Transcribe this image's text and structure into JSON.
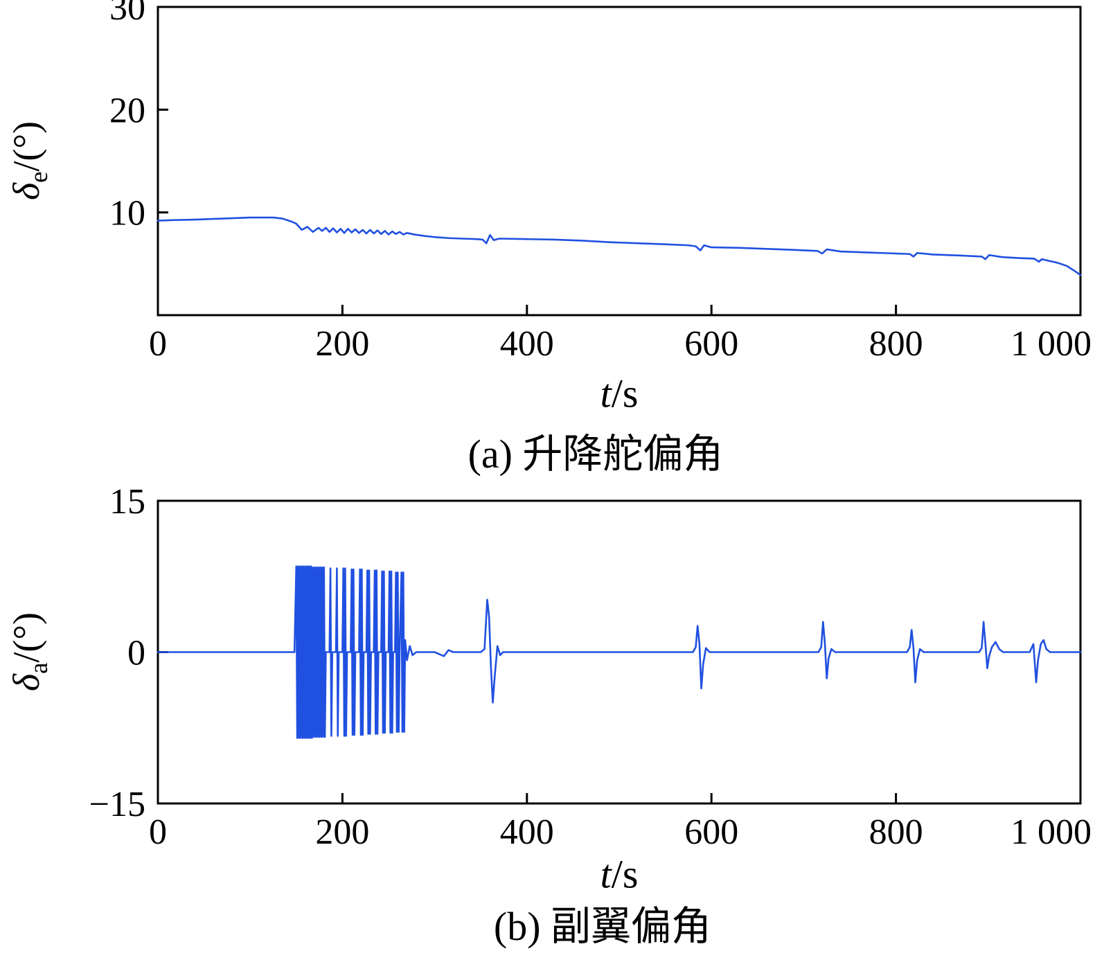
{
  "figure": {
    "background": "#ffffff",
    "axis_color": "#000000",
    "line_color": "#2050e0"
  },
  "chart_data": [
    {
      "type": "line",
      "title": "(a) 升降舵偏角",
      "xlabel": "t/s",
      "ylabel": "δe/(°)",
      "ylabel_parts": {
        "symbol": "δ",
        "sub": "e",
        "unit": "/(°)"
      },
      "xlabel_parts": {
        "symbol": "t",
        "unit": "/s"
      },
      "xlim": [
        0,
        1000
      ],
      "ylim": [
        0,
        30
      ],
      "xticks": [
        0,
        200,
        400,
        600,
        800,
        1000
      ],
      "xtick_labels": [
        "0",
        "200",
        "400",
        "600",
        "800",
        "1 000"
      ],
      "yticks": [
        10,
        20,
        30
      ],
      "ytick_labels": [
        "10",
        "20",
        "30"
      ],
      "grid": false,
      "legend": null,
      "series": [
        {
          "name": "elevator-deflection",
          "color": "#2050e0",
          "points": [
            [
              0,
              9.2
            ],
            [
              15,
              9.25
            ],
            [
              40,
              9.3
            ],
            [
              70,
              9.4
            ],
            [
              100,
              9.5
            ],
            [
              125,
              9.5
            ],
            [
              135,
              9.4
            ],
            [
              145,
              9.1
            ],
            [
              150,
              8.9
            ],
            [
              156,
              8.3
            ],
            [
              162,
              8.6
            ],
            [
              168,
              8.1
            ],
            [
              174,
              8.5
            ],
            [
              178,
              8.2
            ],
            [
              182,
              8.5
            ],
            [
              186,
              8.1
            ],
            [
              190,
              8.45
            ],
            [
              194,
              8.05
            ],
            [
              198,
              8.4
            ],
            [
              202,
              8.0
            ],
            [
              206,
              8.4
            ],
            [
              210,
              8.05
            ],
            [
              214,
              8.35
            ],
            [
              218,
              8.0
            ],
            [
              222,
              8.3
            ],
            [
              226,
              7.95
            ],
            [
              230,
              8.3
            ],
            [
              234,
              7.95
            ],
            [
              238,
              8.25
            ],
            [
              242,
              7.9
            ],
            [
              246,
              8.2
            ],
            [
              250,
              7.85
            ],
            [
              254,
              8.15
            ],
            [
              258,
              7.9
            ],
            [
              262,
              8.1
            ],
            [
              266,
              7.85
            ],
            [
              270,
              8.0
            ],
            [
              278,
              7.85
            ],
            [
              290,
              7.7
            ],
            [
              300,
              7.6
            ],
            [
              315,
              7.5
            ],
            [
              330,
              7.45
            ],
            [
              345,
              7.4
            ],
            [
              352,
              7.35
            ],
            [
              356,
              7.0
            ],
            [
              360,
              7.8
            ],
            [
              364,
              7.3
            ],
            [
              370,
              7.45
            ],
            [
              400,
              7.4
            ],
            [
              430,
              7.35
            ],
            [
              460,
              7.25
            ],
            [
              490,
              7.1
            ],
            [
              520,
              7.0
            ],
            [
              550,
              6.9
            ],
            [
              575,
              6.8
            ],
            [
              583,
              6.7
            ],
            [
              588,
              6.3
            ],
            [
              592,
              6.8
            ],
            [
              600,
              6.6
            ],
            [
              630,
              6.55
            ],
            [
              660,
              6.45
            ],
            [
              690,
              6.35
            ],
            [
              715,
              6.25
            ],
            [
              720,
              6.0
            ],
            [
              725,
              6.4
            ],
            [
              740,
              6.2
            ],
            [
              770,
              6.1
            ],
            [
              800,
              6.0
            ],
            [
              815,
              5.95
            ],
            [
              819,
              5.7
            ],
            [
              823,
              6.05
            ],
            [
              840,
              5.9
            ],
            [
              870,
              5.8
            ],
            [
              893,
              5.7
            ],
            [
              897,
              5.45
            ],
            [
              901,
              5.85
            ],
            [
              915,
              5.65
            ],
            [
              935,
              5.55
            ],
            [
              950,
              5.5
            ],
            [
              955,
              5.2
            ],
            [
              958,
              5.45
            ],
            [
              965,
              5.3
            ],
            [
              975,
              5.1
            ],
            [
              985,
              4.8
            ],
            [
              992,
              4.4
            ],
            [
              997,
              4.1
            ],
            [
              1000,
              3.9
            ]
          ]
        }
      ]
    },
    {
      "type": "line",
      "title": "(b) 副翼偏角",
      "xlabel": "t/s",
      "ylabel": "δa/(°)",
      "ylabel_parts": {
        "symbol": "δ",
        "sub": "a",
        "unit": "/(°)"
      },
      "xlabel_parts": {
        "symbol": "t",
        "unit": "/s"
      },
      "xlim": [
        0,
        1000
      ],
      "ylim": [
        -15,
        15
      ],
      "xticks": [
        0,
        200,
        400,
        600,
        800,
        1000
      ],
      "xtick_labels": [
        "0",
        "200",
        "400",
        "600",
        "800",
        "1 000"
      ],
      "yticks": [
        -15,
        0,
        15
      ],
      "ytick_labels": [
        "−15",
        "0",
        "15"
      ],
      "grid": false,
      "legend": null,
      "series": [
        {
          "name": "aileron-deflection",
          "color": "#2050e0",
          "points": [
            [
              0,
              0
            ],
            [
              140,
              0
            ],
            [
              148,
              0
            ],
            [
              150,
              8.5
            ],
            [
              151,
              -8.5
            ],
            [
              152,
              8.5
            ],
            [
              153,
              -8.5
            ],
            [
              154,
              8.5
            ],
            [
              155,
              -8.5
            ],
            [
              156,
              8.5
            ],
            [
              157,
              -8.5
            ],
            [
              158,
              8.5
            ],
            [
              159,
              -8.5
            ],
            [
              160,
              8.5
            ],
            [
              161,
              -8.5
            ],
            [
              162,
              8.5
            ],
            [
              163,
              -8.5
            ],
            [
              164,
              8.5
            ],
            [
              165,
              -8.5
            ],
            [
              166,
              8.5
            ],
            [
              167,
              -8.5
            ],
            [
              168,
              8.4
            ],
            [
              169,
              -8.4
            ],
            [
              170,
              8.4
            ],
            [
              171,
              -8.4
            ],
            [
              172,
              8.4
            ],
            [
              173,
              -8.4
            ],
            [
              174,
              8.4
            ],
            [
              175,
              -8.4
            ],
            [
              176,
              8.4
            ],
            [
              177,
              -8.4
            ],
            [
              178,
              8.4
            ],
            [
              179,
              -8.4
            ],
            [
              180,
              8.4
            ],
            [
              181,
              -8.4
            ],
            [
              182,
              0
            ],
            [
              186,
              0
            ],
            [
              187,
              8.3
            ],
            [
              188,
              -8.3
            ],
            [
              189,
              0
            ],
            [
              193,
              0
            ],
            [
              194,
              8.3
            ],
            [
              195,
              -8.3
            ],
            [
              196,
              0
            ],
            [
              200,
              0
            ],
            [
              201,
              8.3
            ],
            [
              202,
              -8.3
            ],
            [
              203,
              8.3
            ],
            [
              204,
              -8.3
            ],
            [
              205,
              0
            ],
            [
              209,
              0
            ],
            [
              210,
              8.2
            ],
            [
              211,
              -8.2
            ],
            [
              212,
              8.2
            ],
            [
              213,
              -8.2
            ],
            [
              214,
              0
            ],
            [
              218,
              0
            ],
            [
              219,
              8.2
            ],
            [
              220,
              -8.2
            ],
            [
              221,
              8.2
            ],
            [
              222,
              -8.2
            ],
            [
              223,
              0
            ],
            [
              226,
              0
            ],
            [
              227,
              8.1
            ],
            [
              228,
              -8.1
            ],
            [
              229,
              8.1
            ],
            [
              230,
              -8.1
            ],
            [
              231,
              0
            ],
            [
              234,
              0
            ],
            [
              235,
              8.1
            ],
            [
              236,
              -8.1
            ],
            [
              237,
              8.1
            ],
            [
              238,
              -8.1
            ],
            [
              239,
              0
            ],
            [
              242,
              0
            ],
            [
              243,
              8.0
            ],
            [
              244,
              -8.0
            ],
            [
              245,
              8.0
            ],
            [
              246,
              -8.0
            ],
            [
              247,
              0
            ],
            [
              250,
              0
            ],
            [
              251,
              8.0
            ],
            [
              252,
              -8.0
            ],
            [
              253,
              8.0
            ],
            [
              254,
              -8.0
            ],
            [
              255,
              0
            ],
            [
              257,
              0
            ],
            [
              258,
              7.9
            ],
            [
              259,
              -7.9
            ],
            [
              260,
              7.9
            ],
            [
              261,
              -7.9
            ],
            [
              262,
              0
            ],
            [
              264,
              7.9
            ],
            [
              265,
              -7.9
            ],
            [
              266,
              7.9
            ],
            [
              267,
              -7.9
            ],
            [
              268,
              1.2
            ],
            [
              270,
              -0.8
            ],
            [
              273,
              0.6
            ],
            [
              276,
              -0.3
            ],
            [
              280,
              0
            ],
            [
              300,
              0
            ],
            [
              310,
              -0.4
            ],
            [
              315,
              0.2
            ],
            [
              320,
              0
            ],
            [
              350,
              0
            ],
            [
              354,
              0.3
            ],
            [
              357,
              5.2
            ],
            [
              359,
              3.5
            ],
            [
              361,
              -1.5
            ],
            [
              363,
              -5.0
            ],
            [
              365,
              -2.5
            ],
            [
              368,
              0.6
            ],
            [
              371,
              -0.3
            ],
            [
              374,
              0
            ],
            [
              420,
              0
            ],
            [
              500,
              0
            ],
            [
              560,
              0
            ],
            [
              580,
              0
            ],
            [
              583,
              0.5
            ],
            [
              585,
              2.6
            ],
            [
              587,
              0.8
            ],
            [
              589,
              -3.6
            ],
            [
              591,
              -1.2
            ],
            [
              594,
              0.4
            ],
            [
              598,
              0
            ],
            [
              640,
              0
            ],
            [
              700,
              0
            ],
            [
              716,
              0
            ],
            [
              719,
              0.5
            ],
            [
              721,
              3.0
            ],
            [
              723,
              0.8
            ],
            [
              725,
              -2.6
            ],
            [
              727,
              -0.6
            ],
            [
              730,
              0.3
            ],
            [
              734,
              0
            ],
            [
              780,
              0
            ],
            [
              812,
              0
            ],
            [
              815,
              0.5
            ],
            [
              817,
              2.2
            ],
            [
              819,
              0.4
            ],
            [
              821,
              -3.0
            ],
            [
              823,
              -0.8
            ],
            [
              826,
              0.3
            ],
            [
              830,
              0
            ],
            [
              870,
              0
            ],
            [
              890,
              0
            ],
            [
              893,
              0.4
            ],
            [
              895,
              3.0
            ],
            [
              897,
              0.8
            ],
            [
              899,
              -1.6
            ],
            [
              901,
              -0.4
            ],
            [
              904,
              0.5
            ],
            [
              908,
              1.0
            ],
            [
              912,
              0.3
            ],
            [
              916,
              0
            ],
            [
              945,
              0
            ],
            [
              949,
              0.8
            ],
            [
              952,
              -3.0
            ],
            [
              954,
              -0.8
            ],
            [
              957,
              0.8
            ],
            [
              960,
              1.2
            ],
            [
              963,
              0.3
            ],
            [
              967,
              0
            ],
            [
              1000,
              0
            ]
          ]
        }
      ]
    }
  ]
}
